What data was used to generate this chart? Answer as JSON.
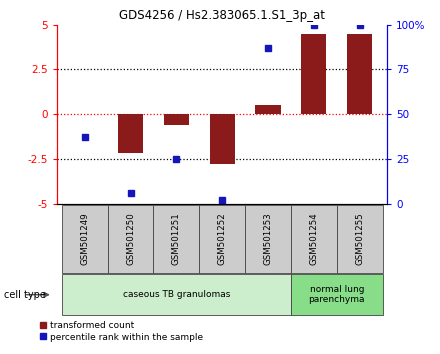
{
  "title": "GDS4256 / Hs2.383065.1.S1_3p_at",
  "samples": [
    "GSM501249",
    "GSM501250",
    "GSM501251",
    "GSM501252",
    "GSM501253",
    "GSM501254",
    "GSM501255"
  ],
  "bar_values": [
    0.0,
    -2.2,
    -0.6,
    -2.8,
    0.5,
    4.5,
    4.5
  ],
  "percentile_ranks": [
    37,
    6,
    25,
    2,
    87,
    100,
    100
  ],
  "bar_color": "#8B1A1A",
  "dot_color": "#1515BB",
  "ylim": [
    -5,
    5
  ],
  "yticks_left": [
    -5,
    -2.5,
    0,
    2.5,
    5
  ],
  "ytick_labels_left": [
    "-5",
    "-2.5",
    "0",
    "2.5",
    "5"
  ],
  "yticks_right_pct": [
    0,
    25,
    50,
    75,
    100
  ],
  "ytick_labels_right": [
    "0",
    "25",
    "50",
    "75",
    "100%"
  ],
  "group1_label": "caseous TB granulomas",
  "group1_color": "#cceecc",
  "group1_indices": [
    0,
    1,
    2,
    3,
    4
  ],
  "group2_label": "normal lung\nparenchyma",
  "group2_color": "#88dd88",
  "group2_indices": [
    5,
    6
  ],
  "cell_type_label": "cell type",
  "legend_bar_label": "transformed count",
  "legend_dot_label": "percentile rank within the sample",
  "bar_width": 0.55,
  "sample_box_color": "#cccccc",
  "background_color": "#ffffff"
}
